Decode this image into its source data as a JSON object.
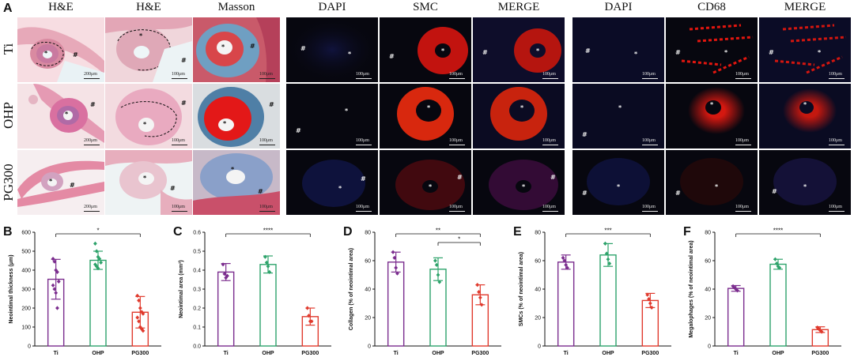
{
  "figure": {
    "panel_A": {
      "letter": "A",
      "he_masson_columns": [
        "H&E",
        "H&E",
        "Masson"
      ],
      "smc_columns": [
        "DAPI",
        "SMC",
        "MERGE"
      ],
      "cd68_columns": [
        "DAPI",
        "CD68",
        "MERGE"
      ],
      "rows": [
        "Ti",
        "OHP",
        "PG300"
      ],
      "scale_labels": {
        "he_low": "200μm",
        "he_high": "100μm",
        "fluor": "100μm"
      },
      "lumen_mark": "*",
      "outer_mark": "#"
    }
  },
  "chart_data": [
    {
      "letter": "B",
      "type": "bar",
      "categories": [
        "Ti",
        "OHP",
        "PG300"
      ],
      "values": [
        352,
        452,
        178
      ],
      "errors": [
        105,
        48,
        83
      ],
      "points": [
        [
          460,
          445,
          400,
          390,
          340,
          320,
          300,
          280,
          200
        ],
        [
          540,
          500,
          470,
          460,
          440,
          430,
          420,
          410
        ],
        [
          265,
          240,
          200,
          180,
          170,
          150,
          130,
          100,
          90,
          80
        ]
      ],
      "ylabel": "Neointimal thickness (μm)",
      "ylim": [
        0,
        600
      ],
      "yticks": [
        0,
        100,
        200,
        300,
        400,
        500,
        600
      ],
      "significance": [
        {
          "from": 0,
          "to": 2,
          "label": "*",
          "level": 0
        }
      ],
      "colors": [
        "#7b2d8e",
        "#2ea36b",
        "#e03a2d"
      ]
    },
    {
      "letter": "C",
      "type": "bar",
      "categories": [
        "Ti",
        "OHP",
        "PG300"
      ],
      "values": [
        0.39,
        0.43,
        0.155
      ],
      "errors": [
        0.045,
        0.045,
        0.045
      ],
      "points": [
        [
          0.43,
          0.38,
          0.36,
          0.37
        ],
        [
          0.47,
          0.44,
          0.42,
          0.39
        ],
        [
          0.2,
          0.16,
          0.13,
          0.13
        ]
      ],
      "ylabel": "Neointimal area (mm²)",
      "ylim": [
        0,
        0.6
      ],
      "yticks": [
        0.0,
        0.1,
        0.2,
        0.3,
        0.4,
        0.5,
        0.6
      ],
      "significance": [
        {
          "from": 0,
          "to": 2,
          "label": "****",
          "level": 0
        }
      ],
      "colors": [
        "#7b2d8e",
        "#2ea36b",
        "#e03a2d"
      ]
    },
    {
      "letter": "D",
      "type": "bar",
      "categories": [
        "Ti",
        "OHP",
        "PG300"
      ],
      "values": [
        59,
        54,
        36
      ],
      "errors": [
        7,
        8,
        7
      ],
      "points": [
        [
          66,
          62,
          55,
          51
        ],
        [
          60,
          57,
          50,
          45
        ],
        [
          43,
          38,
          34,
          29
        ]
      ],
      "ylabel": "Collagen (% of neointimal area)",
      "ylim": [
        0,
        80
      ],
      "yticks": [
        0,
        20,
        40,
        60,
        80
      ],
      "significance": [
        {
          "from": 0,
          "to": 2,
          "label": "**",
          "level": 1
        },
        {
          "from": 1,
          "to": 2,
          "label": "*",
          "level": 0
        }
      ],
      "colors": [
        "#7b2d8e",
        "#2ea36b",
        "#e03a2d"
      ]
    },
    {
      "letter": "E",
      "type": "bar",
      "categories": [
        "Ti",
        "OHP",
        "PG300"
      ],
      "values": [
        59,
        64,
        32
      ],
      "errors": [
        5,
        8,
        5
      ],
      "points": [
        [
          62,
          60,
          57,
          55
        ],
        [
          72,
          65,
          61,
          58
        ],
        [
          36,
          33,
          30,
          27
        ]
      ],
      "ylabel": "SMCs (% of neointimal area)",
      "ylim": [
        0,
        80
      ],
      "yticks": [
        0,
        20,
        40,
        60,
        80
      ],
      "significance": [
        {
          "from": 0,
          "to": 2,
          "label": "***",
          "level": 0
        }
      ],
      "colors": [
        "#7b2d8e",
        "#2ea36b",
        "#e03a2d"
      ]
    },
    {
      "letter": "F",
      "type": "bar",
      "categories": [
        "Ti",
        "OHP",
        "PG300"
      ],
      "values": [
        40.5,
        57.5,
        11.5
      ],
      "errors": [
        2,
        3.5,
        2
      ],
      "points": [
        [
          42,
          41,
          40,
          39
        ],
        [
          61,
          58,
          56,
          55
        ],
        [
          13,
          12,
          11,
          10
        ]
      ],
      "ylabel": "Megalophages (% of neointimal area)",
      "ylim": [
        0,
        80
      ],
      "yticks": [
        0,
        20,
        40,
        60,
        80
      ],
      "significance": [
        {
          "from": 0,
          "to": 2,
          "label": "****",
          "level": 0
        }
      ],
      "colors": [
        "#7b2d8e",
        "#2ea36b",
        "#e03a2d"
      ]
    }
  ]
}
